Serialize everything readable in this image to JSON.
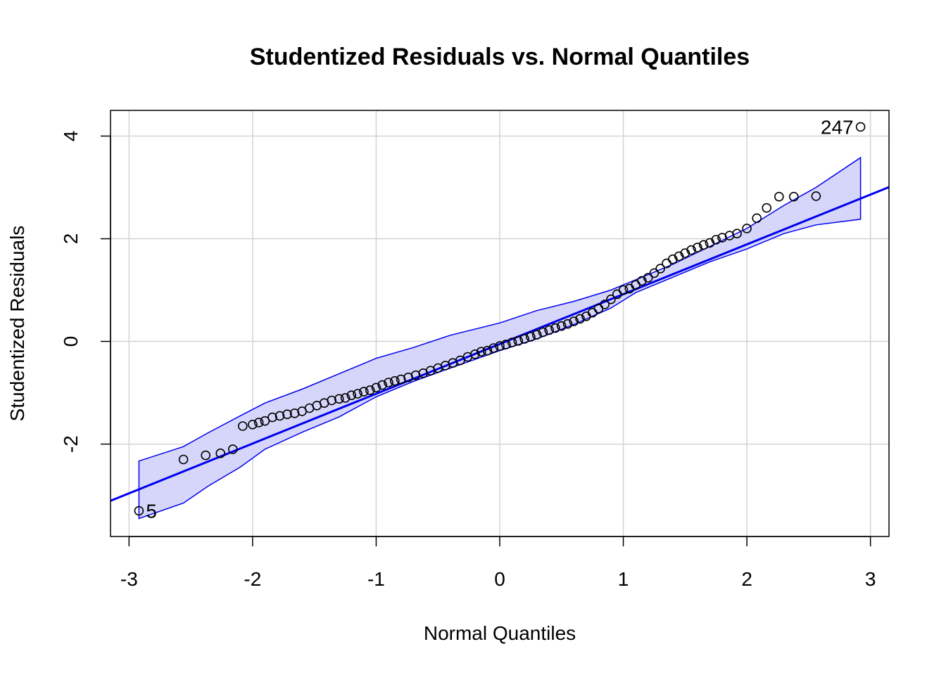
{
  "chart_data": {
    "type": "scatter",
    "title": "Studentized Residuals vs. Normal Quantiles",
    "xlabel": "Normal Quantiles",
    "ylabel": "Studentized Residuals",
    "xlim": [
      -3.15,
      3.15
    ],
    "ylim": [
      -3.8,
      4.5
    ],
    "xticks": [
      -3,
      -2,
      -1,
      0,
      1,
      2,
      3
    ],
    "xtick_labels": [
      "-3",
      "-2",
      "-1",
      "0",
      "1",
      "2",
      "3"
    ],
    "yticks": [
      -2,
      0,
      2,
      4
    ],
    "ytick_labels": [
      "-2",
      "0",
      "2",
      "4"
    ],
    "grid": true,
    "legend": "none",
    "colors": {
      "reference_line": "#0000ee",
      "envelope_fill": "#d6d6fb",
      "envelope_edge": "#0000ee",
      "points": "#000000",
      "grid": "#d3d3d3"
    },
    "reference_line": {
      "intercept": -0.05,
      "slope": 0.97
    },
    "confidence_envelope": {
      "x": [
        -2.92,
        -2.56,
        -2.36,
        -2.1,
        -1.9,
        -1.6,
        -1.3,
        -1.0,
        -0.7,
        -0.4,
        0.0,
        0.3,
        0.6,
        0.9,
        1.1,
        1.4,
        1.7,
        2.0,
        2.3,
        2.56,
        2.92
      ],
      "upper": [
        -2.33,
        -2.05,
        -1.78,
        -1.45,
        -1.2,
        -0.93,
        -0.63,
        -0.33,
        -0.12,
        0.12,
        0.36,
        0.6,
        0.78,
        1.0,
        1.2,
        1.5,
        1.85,
        2.2,
        2.65,
        3.0,
        3.58
      ],
      "lower": [
        -3.45,
        -3.15,
        -2.82,
        -2.45,
        -2.1,
        -1.77,
        -1.47,
        -1.08,
        -0.78,
        -0.52,
        -0.18,
        0.05,
        0.33,
        0.65,
        0.95,
        1.25,
        1.55,
        1.8,
        2.1,
        2.27,
        2.38
      ]
    },
    "points": {
      "x": [
        -2.92,
        -2.56,
        -2.38,
        -2.26,
        -2.16,
        -2.08,
        -2.0,
        -1.95,
        -1.9,
        -1.84,
        -1.78,
        -1.72,
        -1.66,
        -1.6,
        -1.54,
        -1.48,
        -1.42,
        -1.36,
        -1.3,
        -1.25,
        -1.2,
        -1.15,
        -1.1,
        -1.05,
        -1.0,
        -0.95,
        -0.9,
        -0.85,
        -0.8,
        -0.74,
        -0.68,
        -0.62,
        -0.56,
        -0.5,
        -0.44,
        -0.38,
        -0.32,
        -0.26,
        -0.2,
        -0.15,
        -0.1,
        -0.05,
        0.0,
        0.05,
        0.1,
        0.15,
        0.2,
        0.25,
        0.3,
        0.35,
        0.4,
        0.45,
        0.5,
        0.55,
        0.6,
        0.65,
        0.7,
        0.75,
        0.8,
        0.85,
        0.9,
        0.95,
        1.0,
        1.05,
        1.1,
        1.15,
        1.2,
        1.25,
        1.3,
        1.35,
        1.4,
        1.45,
        1.5,
        1.55,
        1.6,
        1.65,
        1.7,
        1.75,
        1.8,
        1.86,
        1.92,
        2.0,
        2.08,
        2.16,
        2.26,
        2.38,
        2.56,
        2.92
      ],
      "y": [
        -3.3,
        -2.3,
        -2.22,
        -2.18,
        -2.1,
        -1.65,
        -1.62,
        -1.58,
        -1.55,
        -1.48,
        -1.45,
        -1.42,
        -1.4,
        -1.36,
        -1.3,
        -1.25,
        -1.2,
        -1.15,
        -1.12,
        -1.1,
        -1.05,
        -1.02,
        -0.98,
        -0.95,
        -0.9,
        -0.85,
        -0.8,
        -0.77,
        -0.74,
        -0.7,
        -0.66,
        -0.62,
        -0.57,
        -0.52,
        -0.47,
        -0.42,
        -0.37,
        -0.3,
        -0.25,
        -0.2,
        -0.18,
        -0.13,
        -0.09,
        -0.06,
        -0.02,
        0.01,
        0.05,
        0.09,
        0.13,
        0.18,
        0.22,
        0.26,
        0.3,
        0.34,
        0.39,
        0.44,
        0.49,
        0.56,
        0.64,
        0.72,
        0.82,
        0.92,
        1.0,
        1.03,
        1.1,
        1.18,
        1.24,
        1.33,
        1.42,
        1.52,
        1.6,
        1.66,
        1.72,
        1.78,
        1.83,
        1.88,
        1.92,
        1.98,
        2.02,
        2.06,
        2.1,
        2.2,
        2.4,
        2.6,
        2.82,
        2.82,
        2.83,
        4.18
      ]
    },
    "annotations": [
      {
        "label": "247",
        "x": 2.92,
        "y": 4.18,
        "anchor": "end"
      },
      {
        "label": "5",
        "x": -2.92,
        "y": -3.3,
        "anchor": "start"
      }
    ]
  }
}
